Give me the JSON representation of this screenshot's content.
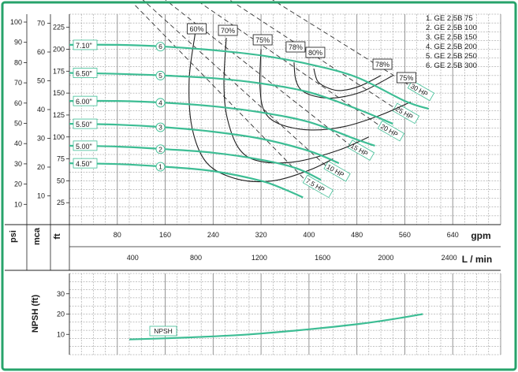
{
  "colors": {
    "frame": "#27a36b",
    "curve": "#3dbd94",
    "efficiency": "#1f1f1f",
    "power": "#333333",
    "grid": "#8a8a8a",
    "label_fill": "#ffffff"
  },
  "chart_data": [
    {
      "type": "line",
      "title": "",
      "legend": {
        "placement": "top-right",
        "items": [
          "1. GE 2.5B 75",
          "2. GE 2.5B 100",
          "3. GE 2.5B 150",
          "4. GE 2.5B 200",
          "5. GE 2.5B 250",
          "6. GE 2.5B 300"
        ]
      },
      "grid": true,
      "x_axis": {
        "unit": "gpm",
        "ticks": [
          80,
          160,
          240,
          320,
          400,
          480,
          560,
          640
        ],
        "range": [
          0,
          720
        ]
      },
      "x_axis_secondary": {
        "unit": "L / min",
        "ticks": [
          400,
          800,
          1200,
          1600,
          2000,
          2400
        ]
      },
      "y_axis": {
        "unit": "ft",
        "ticks": [
          25,
          50,
          75,
          100,
          125,
          150,
          175,
          200,
          225
        ],
        "range": [
          0,
          240
        ]
      },
      "y_axis_psi": {
        "unit": "psi",
        "ticks": [
          10,
          20,
          30,
          40,
          50,
          60,
          70,
          80,
          90,
          100
        ]
      },
      "y_axis_mca": {
        "unit": "mca",
        "ticks": [
          10,
          20,
          30,
          40,
          50,
          60,
          70
        ]
      },
      "series": [
        {
          "name": "1",
          "impeller": "4.50\"",
          "x": [
            0,
            80,
            160,
            240,
            320,
            360,
            390
          ],
          "y": [
            70,
            69,
            66,
            61,
            50,
            40,
            31
          ]
        },
        {
          "name": "2",
          "impeller": "5.00\"",
          "x": [
            0,
            80,
            160,
            240,
            320,
            380,
            420
          ],
          "y": [
            90,
            89,
            86,
            82,
            74,
            64,
            51
          ]
        },
        {
          "name": "3",
          "impeller": "5.50\"",
          "x": [
            0,
            80,
            160,
            240,
            320,
            400,
            450
          ],
          "y": [
            115,
            114,
            111,
            106,
            98,
            84,
            70
          ]
        },
        {
          "name": "4",
          "impeller": "6.00\"",
          "x": [
            0,
            80,
            160,
            240,
            320,
            400,
            480,
            510
          ],
          "y": [
            141,
            141,
            139,
            135,
            128,
            117,
            97,
            90
          ]
        },
        {
          "name": "5",
          "impeller": "6.50\"",
          "x": [
            0,
            80,
            160,
            240,
            320,
            400,
            480,
            540
          ],
          "y": [
            173,
            172,
            170,
            167,
            161,
            151,
            132,
            115
          ]
        },
        {
          "name": "6",
          "impeller": "7.10\"",
          "x": [
            0,
            80,
            160,
            240,
            320,
            400,
            480,
            560,
            600
          ],
          "y": [
            205,
            205,
            203,
            199,
            193,
            183,
            168,
            141,
            132
          ]
        }
      ],
      "efficiency_lines": [
        {
          "label": "60%",
          "x": [
            210,
            200,
            205,
            230,
            280,
            340,
            400,
            440
          ],
          "y": [
            218,
            165,
            110,
            70,
            52,
            50,
            62,
            75
          ]
        },
        {
          "label": "70%",
          "x": [
            262,
            258,
            264,
            285,
            320,
            380,
            450,
            500
          ],
          "y": [
            213,
            160,
            120,
            85,
            72,
            72,
            85,
            100
          ]
        },
        {
          "label": "75%",
          "x": [
            320,
            318,
            325,
            350,
            400,
            460,
            520,
            570
          ],
          "y": [
            200,
            160,
            130,
            115,
            108,
            112,
            125,
            140
          ]
        },
        {
          "label": "78%",
          "x": [
            375,
            378,
            390,
            420,
            450,
            490,
            540
          ],
          "y": [
            185,
            165,
            152,
            145,
            145,
            152,
            170
          ]
        },
        {
          "label": "80%",
          "x": [
            408,
            415,
            435,
            455,
            485,
            520
          ],
          "y": [
            178,
            163,
            155,
            153,
            158,
            170
          ]
        },
        {
          "label": "78%",
          "x": [
            520
          ]
        },
        {
          "label": "75%",
          "x": [
            560
          ]
        }
      ],
      "power_lines": [
        {
          "label": "7.5 HP"
        },
        {
          "label": "10 HP"
        },
        {
          "label": "15 HP"
        },
        {
          "label": "20 HP"
        },
        {
          "label": "25 HP"
        },
        {
          "label": "30 HP"
        }
      ]
    },
    {
      "type": "line",
      "title": "",
      "x_axis": {
        "unit": "gpm",
        "range": [
          0,
          720
        ]
      },
      "y_axis": {
        "label": "NPSH (ft)",
        "ticks": [
          10,
          20,
          30
        ],
        "range": [
          0,
          40
        ]
      },
      "grid": true,
      "series": [
        {
          "name": "NPSH",
          "x": [
            100,
            200,
            300,
            400,
            480,
            540,
            590
          ],
          "y": [
            7.5,
            8.5,
            10,
            12.5,
            15,
            17.5,
            20
          ]
        }
      ]
    }
  ]
}
